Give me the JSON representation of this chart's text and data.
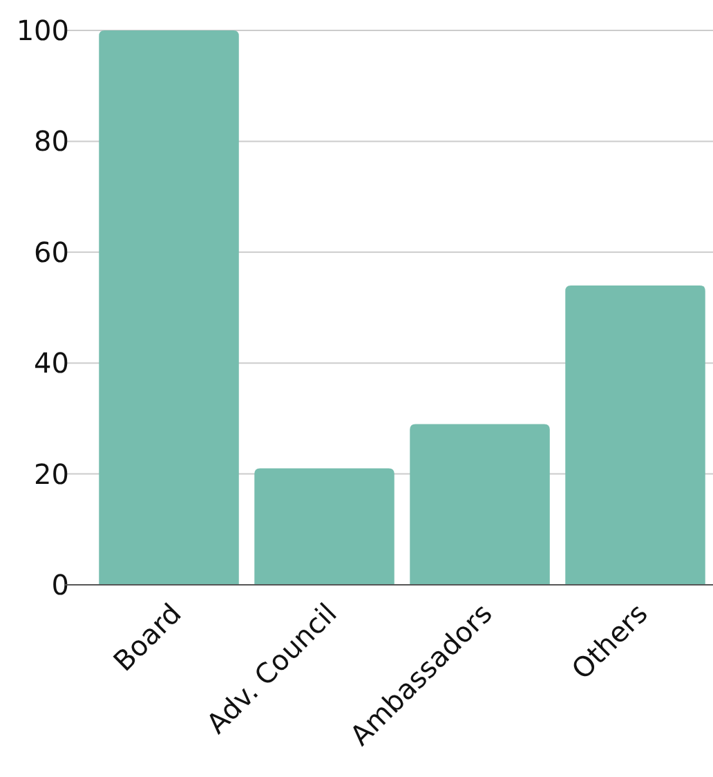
{
  "chart_data": {
    "type": "bar",
    "categories": [
      "Board",
      "Adv. Council",
      "Ambassadors",
      "Others"
    ],
    "values": [
      100,
      21,
      29,
      54
    ],
    "color": "#76bdae",
    "ylim": [
      0,
      100
    ],
    "yticks": [
      0,
      20,
      40,
      60,
      80,
      100
    ],
    "grid": "y"
  }
}
